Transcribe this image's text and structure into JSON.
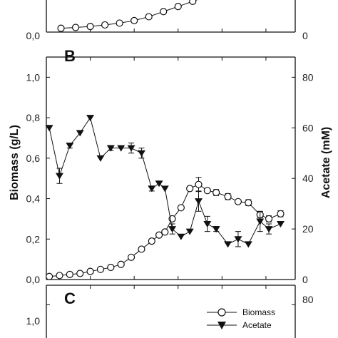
{
  "chart_data": [
    {
      "panel": "A",
      "panel_label": "",
      "type": "line",
      "ylim_left": [
        0,
        1.1
      ],
      "ylim_right": [
        0,
        88
      ],
      "x": [
        1,
        2,
        3,
        4,
        5,
        6,
        7,
        8,
        9,
        10,
        11,
        12,
        13,
        14,
        15,
        16,
        17,
        18,
        19,
        20,
        21,
        22,
        23,
        24,
        25,
        26,
        27,
        28,
        29,
        30,
        31
      ],
      "series": [
        {
          "key": "biomass",
          "axis": "left",
          "x": [
            0.5,
            1,
            1.5,
            2,
            2.5,
            3,
            3.5,
            4,
            4.5,
            5,
            5.5,
            6,
            6.5,
            7,
            7.5,
            8
          ],
          "values": [
            0.015,
            0.018,
            0.022,
            0.028,
            0.035,
            0.045,
            0.06,
            0.08,
            0.1,
            0.12,
            0.14,
            0.16,
            0.19,
            0.22,
            0.26,
            0.3
          ]
        },
        {
          "key": "acetate",
          "axis": "right",
          "x": [
            10.5,
            11.5,
            12.5,
            13.5,
            14.5,
            15.5,
            16.5
          ],
          "values": [
            16,
            0,
            0,
            0,
            0,
            0,
            0
          ]
        }
      ],
      "visible_ticks_left": [
        "0,0"
      ],
      "visible_ticks_right": [
        "0"
      ]
    },
    {
      "panel": "B",
      "panel_label": "B",
      "type": "line",
      "ylim_left": [
        0,
        1.1
      ],
      "ylim_right": [
        0,
        88
      ],
      "ylabel_left": "Biomass (g/L)",
      "ylabel_right": "Acetate (mM)",
      "yticks_left": [
        "0,0",
        "0,2",
        "0,4",
        "0,6",
        "0,8",
        "1,0"
      ],
      "yticks_right": [
        "0",
        "20",
        "40",
        "60",
        "80"
      ],
      "series": [
        {
          "name": "Biomass",
          "key": "biomass",
          "axis": "left",
          "x": [
            0.1,
            0.45,
            0.8,
            1.15,
            1.5,
            1.85,
            2.2,
            2.55,
            2.9,
            3.25,
            3.6,
            3.85,
            4.05,
            4.3,
            4.6,
            4.9,
            5.2,
            5.5,
            5.8,
            6.2,
            6.55,
            6.9,
            7.3,
            7.6,
            8.0
          ],
          "values": [
            0.015,
            0.02,
            0.025,
            0.03,
            0.04,
            0.05,
            0.06,
            0.075,
            0.11,
            0.15,
            0.19,
            0.22,
            0.235,
            0.3,
            0.355,
            0.45,
            0.47,
            0.44,
            0.43,
            0.41,
            0.385,
            0.38,
            0.32,
            0.3,
            0.325
          ],
          "errors": [
            0,
            0,
            0,
            0,
            0,
            0,
            0,
            0,
            0,
            0,
            0,
            0,
            0,
            0,
            0,
            0,
            0.035,
            0,
            0.015,
            0.015,
            0,
            0.015,
            0.015,
            0.015,
            0.015
          ]
        },
        {
          "name": "Acetate",
          "key": "acetate",
          "axis": "right",
          "x": [
            0.1,
            0.45,
            0.8,
            1.15,
            1.5,
            1.85,
            2.2,
            2.55,
            2.9,
            3.25,
            3.6,
            3.85,
            4.05,
            4.3,
            4.6,
            4.9,
            5.2,
            5.5,
            5.8,
            6.2,
            6.55,
            6.9,
            7.3,
            7.6,
            8.0
          ],
          "values": [
            60,
            41,
            53,
            58,
            64,
            48,
            52,
            52,
            52,
            50,
            36,
            38,
            36,
            20,
            17,
            19,
            31,
            22,
            20,
            14,
            16,
            14,
            23,
            20,
            22
          ],
          "errors": [
            0,
            3,
            1,
            0,
            0,
            0,
            1,
            0,
            2,
            2,
            1,
            0,
            0,
            2,
            0,
            0,
            4,
            3,
            1,
            0,
            3,
            0,
            4,
            2,
            0
          ]
        }
      ]
    },
    {
      "panel": "C",
      "panel_label": "C",
      "type": "line",
      "ylim_left": [
        0,
        1.1
      ],
      "ylim_right": [
        0,
        88
      ],
      "visible_ticks_left": [
        "1,0"
      ],
      "visible_ticks_right": [
        "80"
      ],
      "legend": [
        {
          "label": "Biomass",
          "marker": "open-circle"
        },
        {
          "label": "Acetate",
          "marker": "filled-triangle-down"
        }
      ],
      "legend_position": "top-right"
    }
  ]
}
